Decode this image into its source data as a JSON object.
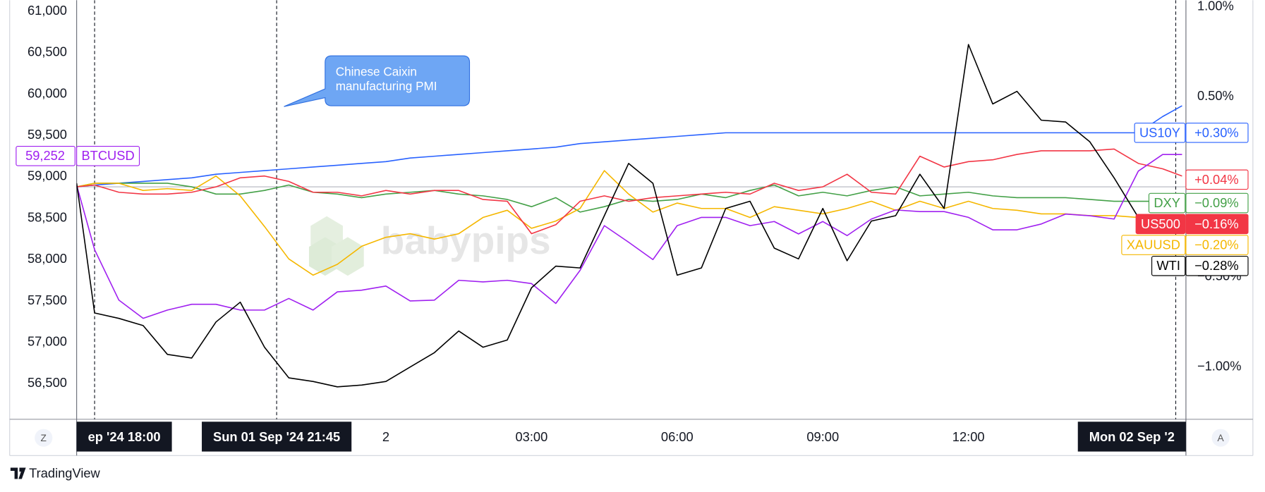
{
  "chart_data": {
    "type": "line",
    "annotation": [
      "Chinese Caixin",
      "manufacturing PMI"
    ],
    "watermark": "babypips",
    "x": [
      17.63,
      18,
      18.5,
      19,
      19.5,
      20,
      20.5,
      21,
      21.5,
      22,
      22.5,
      23,
      23.5,
      24,
      24.5,
      25,
      25.5,
      26,
      26.5,
      27,
      27.5,
      28,
      28.5,
      29,
      29.5,
      30,
      30.5,
      31,
      31.5,
      32,
      32.5,
      33,
      33.5,
      34,
      34.5,
      35,
      35.5,
      36,
      36.5,
      37,
      37.5,
      38,
      38.5,
      39,
      39.5,
      40,
      40.4
    ],
    "xlim": [
      17.63,
      40.48
    ],
    "xticks": [
      {
        "value": 24,
        "label": "2"
      },
      {
        "value": 27,
        "label": "03:00"
      },
      {
        "value": 30,
        "label": "06:00"
      },
      {
        "value": 33,
        "label": "09:00"
      },
      {
        "value": 36,
        "label": "12:00"
      }
    ],
    "markers": [
      {
        "value": 18,
        "label": "ep '24  18:00"
      },
      {
        "value": 21.75,
        "label": "Sun 01 Sep '24  21:45"
      },
      {
        "value": 40.27,
        "label": "Mon 02 Sep '2"
      }
    ],
    "ylim": [
      56070,
      61135
    ],
    "yticks": [
      {
        "value": 56500,
        "label": "56,500"
      },
      {
        "value": 57000,
        "label": "57,000"
      },
      {
        "value": 57500,
        "label": "57,500"
      },
      {
        "value": 58000,
        "label": "58,000"
      },
      {
        "value": 58500,
        "label": "58,500"
      },
      {
        "value": 59000,
        "label": "59,000"
      },
      {
        "value": 59500,
        "label": "59,500"
      },
      {
        "value": 60000,
        "label": "60,000"
      },
      {
        "value": 60500,
        "label": "60,500"
      },
      {
        "value": 61000,
        "label": "61,000"
      }
    ],
    "y2lim": [
      -1.29,
      1.036
    ],
    "y2ticks": [
      {
        "value": 1,
        "label": "1.00%"
      },
      {
        "value": 0.5,
        "label": "0.50%"
      },
      {
        "value": -0.5,
        "label": "−0.50%"
      },
      {
        "value": -1,
        "label": "−1.00%"
      }
    ],
    "zero_line": 0,
    "series": [
      {
        "color": "#2962ff",
        "axis": "y2",
        "values": [
          0,
          0.01,
          0.02,
          0.03,
          0.04,
          0.05,
          0.07,
          0.08,
          0.09,
          0.1,
          0.11,
          0.12,
          0.13,
          0.14,
          0.16,
          0.17,
          0.18,
          0.19,
          0.2,
          0.21,
          0.22,
          0.24,
          0.25,
          0.26,
          0.27,
          0.28,
          0.29,
          0.3,
          0.3,
          0.3,
          0.3,
          0.3,
          0.3,
          0.3,
          0.3,
          0.3,
          0.3,
          0.3,
          0.3,
          0.3,
          0.3,
          0.3,
          0.3,
          0.3,
          0.3,
          0.39,
          0.45
        ]
      },
      {
        "color": "#43a047",
        "axis": "y2",
        "values": [
          0,
          0.02,
          0.02,
          0.02,
          0.02,
          0,
          -0.04,
          -0.04,
          -0.02,
          0.01,
          -0.03,
          -0.04,
          -0.06,
          -0.04,
          -0.03,
          -0.02,
          -0.04,
          -0.05,
          -0.07,
          -0.11,
          -0.06,
          -0.14,
          -0.11,
          -0.07,
          -0.08,
          -0.07,
          -0.04,
          -0.06,
          -0.02,
          0.01,
          -0.05,
          -0.03,
          -0.05,
          -0.02,
          0,
          -0.05,
          -0.04,
          -0.03,
          -0.05,
          -0.06,
          -0.06,
          -0.06,
          -0.07,
          -0.08,
          -0.08,
          -0.08,
          -0.07
        ]
      },
      {
        "color": "#f5b700",
        "axis": "y2",
        "values": [
          0,
          0.02,
          0.02,
          -0.02,
          -0.01,
          -0.02,
          0.06,
          -0.05,
          -0.22,
          -0.4,
          -0.49,
          -0.43,
          -0.33,
          -0.28,
          -0.26,
          -0.29,
          -0.26,
          -0.17,
          -0.13,
          -0.23,
          -0.19,
          -0.12,
          0.09,
          -0.04,
          -0.14,
          -0.09,
          -0.12,
          -0.12,
          -0.17,
          -0.11,
          -0.13,
          -0.15,
          -0.12,
          -0.08,
          -0.13,
          -0.08,
          -0.12,
          -0.08,
          -0.12,
          -0.13,
          -0.15,
          -0.15,
          -0.16,
          -0.16,
          -0.17,
          null,
          null
        ]
      },
      {
        "color": "#f23645",
        "axis": "y2",
        "values": [
          0,
          0.01,
          -0.03,
          -0.04,
          -0.04,
          -0.03,
          0,
          0.05,
          0.06,
          0.03,
          -0.03,
          -0.03,
          -0.05,
          -0.02,
          -0.04,
          -0.02,
          -0.02,
          -0.07,
          -0.08,
          -0.26,
          -0.21,
          -0.08,
          -0.05,
          -0.08,
          -0.06,
          -0.05,
          -0.04,
          -0.03,
          -0.04,
          0.02,
          -0.02,
          0,
          0.07,
          -0.03,
          -0.04,
          0.17,
          0.11,
          0.14,
          0.15,
          0.18,
          0.2,
          0.2,
          0.2,
          0.21,
          0.13,
          0.1,
          0.06
        ]
      },
      {
        "color": "#a020f0",
        "values": [
          58900,
          58120,
          57510,
          57290,
          57390,
          57460,
          57460,
          57390,
          57390,
          57530,
          57390,
          57610,
          57630,
          57680,
          57500,
          57510,
          57750,
          57730,
          57750,
          57710,
          57470,
          57870,
          58410,
          58210,
          58000,
          58410,
          58510,
          58510,
          58410,
          58460,
          58310,
          58460,
          58290,
          58490,
          58600,
          58580,
          58580,
          58510,
          58360,
          58360,
          58430,
          58550,
          58530,
          58490,
          59070,
          59270,
          59270
        ],
        "last": {
          "symbol": "BTCUSD",
          "value": 59252,
          "label": "59,252"
        }
      },
      {
        "color": "#000000",
        "axis": "y2",
        "values": [
          0.02,
          -0.7,
          -0.73,
          -0.77,
          -0.93,
          -0.95,
          -0.75,
          -0.64,
          -0.89,
          -1.06,
          -1.08,
          -1.11,
          -1.1,
          -1.08,
          -1.0,
          -0.92,
          -0.8,
          -0.89,
          -0.85,
          -0.56,
          -0.44,
          -0.45,
          -0.16,
          0.13,
          0.02,
          -0.49,
          -0.45,
          -0.12,
          -0.08,
          -0.34,
          -0.4,
          -0.12,
          -0.41,
          -0.19,
          -0.16,
          0.07,
          -0.12,
          0.79,
          0.46,
          0.53,
          0.37,
          0.36,
          0.25,
          0.05,
          -0.17,
          null,
          null
        ]
      }
    ],
    "scale_labels": [
      {
        "symbol": "US10Y",
        "value": 0.3,
        "label": "+0.30%",
        "color": "#2962ff",
        "filled": false
      },
      {
        "value": 0.04,
        "label": "+0.04%",
        "color": "#f23645",
        "filled": false
      },
      {
        "symbol": "DXY",
        "value": -0.09,
        "label": "−0.09%",
        "color": "#43a047",
        "filled": false
      },
      {
        "symbol": "US500",
        "value": -0.16,
        "label": "−0.16%",
        "color": "#f23645",
        "filled": true
      },
      {
        "symbol": "XAUUSD",
        "value": -0.2,
        "label": "−0.20%",
        "color": "#f5b700",
        "filled": false
      },
      {
        "symbol": "WTI",
        "value": -0.28,
        "label": "−0.28%",
        "color": "#000000",
        "filled": false
      }
    ]
  },
  "axis_buttons": [
    "Z",
    "A"
  ],
  "footer": {
    "brand": "TradingView"
  }
}
